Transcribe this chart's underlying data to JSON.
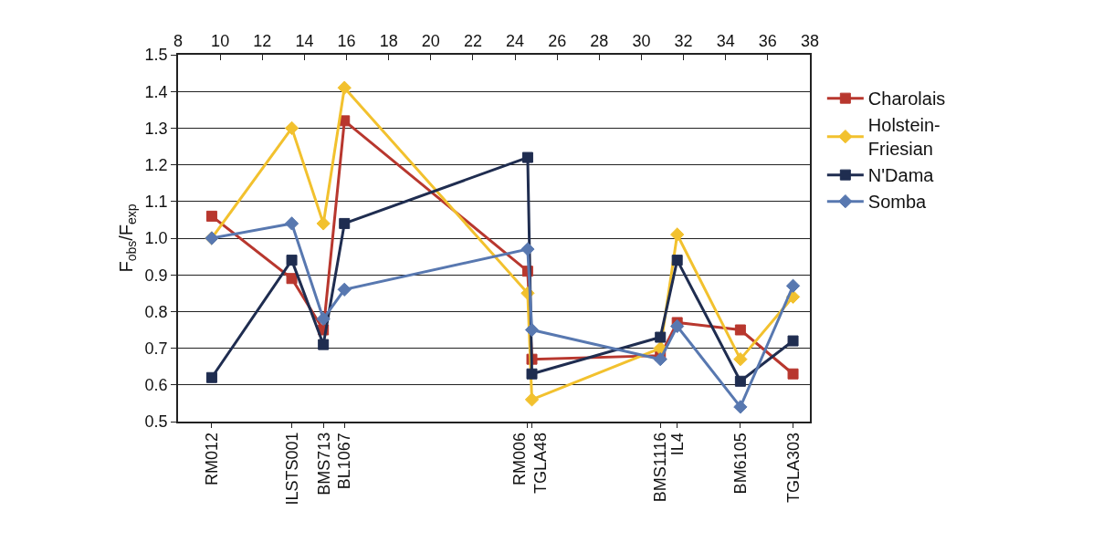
{
  "chart_data": {
    "type": "line",
    "ylabel": "F$_{obs}$/F$_{exp}$",
    "x": [
      9.6,
      13.4,
      14.9,
      15.9,
      24.6,
      24.8,
      30.9,
      31.7,
      34.7,
      37.2
    ],
    "series": [
      {
        "name": "Charolais",
        "color": "#b8372e",
        "marker": "square",
        "values": [
          1.06,
          0.89,
          0.75,
          1.32,
          0.91,
          0.67,
          0.68,
          0.77,
          0.75,
          0.63
        ]
      },
      {
        "name": "Holstein-Friesian",
        "color": "#f2c12e",
        "marker": "diamond",
        "values": [
          1.0,
          1.3,
          1.04,
          1.41,
          0.85,
          0.56,
          0.7,
          1.01,
          0.67,
          0.84
        ]
      },
      {
        "name": "N'Dama",
        "color": "#1f2d50",
        "marker": "square",
        "values": [
          0.62,
          0.94,
          0.71,
          1.04,
          1.22,
          0.63,
          0.73,
          0.94,
          0.61,
          0.72
        ]
      },
      {
        "name": "Somba",
        "color": "#5878b0",
        "marker": "diamond",
        "values": [
          1.0,
          1.04,
          0.78,
          0.86,
          0.97,
          0.75,
          0.67,
          0.76,
          0.54,
          0.87
        ]
      }
    ],
    "annotations": [
      {
        "text": "RM012",
        "x": 9.6
      },
      {
        "text": "ILSTS001",
        "x": 13.4
      },
      {
        "text": "BMS713",
        "x": 14.9
      },
      {
        "text": "BL1067",
        "x": 15.9
      },
      {
        "text": "RM006",
        "x": 24.6
      },
      {
        "text": "TGLA48",
        "x": 24.8
      },
      {
        "text": "BMS1116",
        "x": 30.9
      },
      {
        "text": "IL4",
        "x": 31.7
      },
      {
        "text": "BM6105",
        "x": 34.7
      },
      {
        "text": "TGLA303",
        "x": 37.2
      }
    ],
    "xlim": [
      8,
      38
    ],
    "xticks": [
      8,
      10,
      12,
      14,
      16,
      18,
      20,
      22,
      24,
      26,
      28,
      30,
      32,
      34,
      36,
      38
    ],
    "ylim": [
      0.5,
      1.5
    ],
    "yticks": [
      0.5,
      0.6,
      0.7,
      0.8,
      0.9,
      {
        "value": 1.0,
        "label": "1.0"
      },
      1.1,
      1.2,
      1.3,
      1.4,
      1.5
    ],
    "grid": "y",
    "legend": "right",
    "line_style": "solid"
  }
}
